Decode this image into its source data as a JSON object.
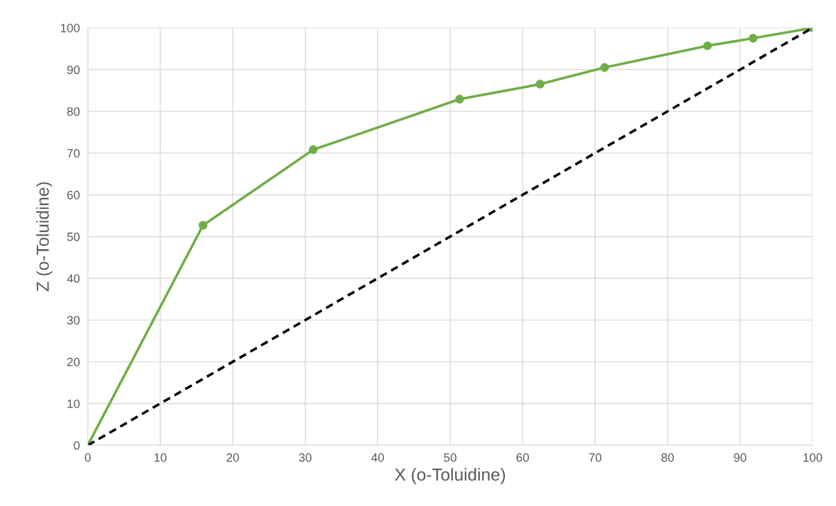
{
  "chart_data": {
    "type": "line",
    "xlabel": "X (o-Toluidine)",
    "ylabel": "Z (o-Toluidine)",
    "series": [
      {
        "color": "#70ad47",
        "marker": "circle",
        "line_style": "solid",
        "x": [
          0,
          15.9,
          31.1,
          51.3,
          62.4,
          71.3,
          85.5,
          91.8,
          100
        ],
        "values": [
          0,
          52.7,
          70.8,
          82.9,
          86.5,
          90.5,
          95.7,
          97.5,
          100
        ]
      },
      {
        "color": "#000000",
        "marker": "none",
        "line_style": "dashed",
        "x": [
          0,
          100
        ],
        "values": [
          0,
          100
        ]
      }
    ],
    "xlim": [
      0,
      100
    ],
    "ylim": [
      0,
      100
    ],
    "xticks": [
      0,
      10,
      20,
      30,
      40,
      50,
      60,
      70,
      80,
      90,
      100
    ],
    "yticks": [
      0,
      10,
      20,
      30,
      40,
      50,
      60,
      70,
      80,
      90,
      100
    ],
    "grid": true,
    "legend": false
  }
}
